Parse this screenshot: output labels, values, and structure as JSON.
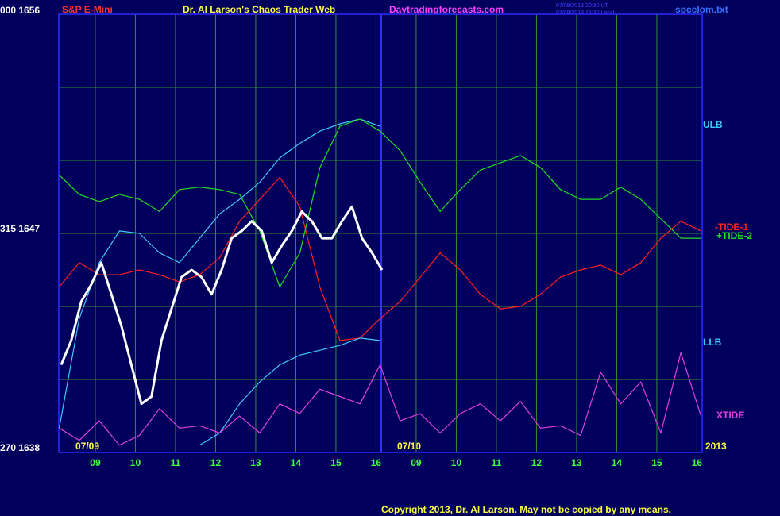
{
  "chart_data": {
    "type": "line",
    "instrument": "S&P E-Mini",
    "title": "Dr. Al Larson's Chaos Trader Web",
    "website": "Daytradingforecasts.com",
    "timestamps": [
      "07/09/2013 20:30 UT",
      "07/09/2013 15:30 Local"
    ],
    "file": "spcclom.txt",
    "copyright": "Copyright 2013, Dr. Al Larson. May not be copied by any means.",
    "day_labels": [
      "07/09",
      "07/10"
    ],
    "year": "2013",
    "xlim": [
      0.09,
      16.13
    ],
    "ylim": [
      1638,
      1656
    ],
    "yticks": [
      {
        "value": 1656,
        "label": "000 1656"
      },
      {
        "value": 1647,
        "label": "315 1647"
      },
      {
        "value": 1638,
        "label": "270 1638"
      }
    ],
    "ygrid": [
      1638,
      1641,
      1644,
      1647,
      1650,
      1653,
      1656
    ],
    "xticks": [
      {
        "value": 1,
        "label": "09"
      },
      {
        "value": 2,
        "label": "10"
      },
      {
        "value": 3,
        "label": "11"
      },
      {
        "value": 4,
        "label": "12"
      },
      {
        "value": 5,
        "label": "13"
      },
      {
        "value": 6,
        "label": "14"
      },
      {
        "value": 7,
        "label": "15"
      },
      {
        "value": 8,
        "label": "16"
      },
      {
        "value": 9,
        "label": "09"
      },
      {
        "value": 10,
        "label": "10"
      },
      {
        "value": 11,
        "label": "11"
      },
      {
        "value": 12,
        "label": "12"
      },
      {
        "value": 13,
        "label": "13"
      },
      {
        "value": 14,
        "label": "14"
      },
      {
        "value": 15,
        "label": "15"
      },
      {
        "value": 16,
        "label": "16"
      }
    ],
    "now_x": 8.13,
    "grid": true,
    "x": [
      0.1,
      0.6,
      1.1,
      1.6,
      2.1,
      2.6,
      3.1,
      3.6,
      4.1,
      4.6,
      5.1,
      5.6,
      6.1,
      6.6,
      7.1,
      7.6,
      8.1,
      8.6,
      9.1,
      9.6,
      10.1,
      10.6,
      11.1,
      11.6,
      12.1,
      12.6,
      13.1,
      13.6,
      14.1,
      14.6,
      15.1,
      15.6,
      16.1
    ],
    "series": [
      {
        "name": "ULB",
        "color": "#40c8ff",
        "values": [
          1639.0,
          1643.5,
          1645.8,
          1647.1,
          1647.0,
          1646.2,
          1645.8,
          1646.8,
          1647.8,
          1648.4,
          1649.1,
          1650.1,
          1650.7,
          1651.2,
          1651.5,
          1651.7,
          1651.4,
          null,
          null,
          null,
          null,
          null,
          null,
          null,
          null,
          null,
          null,
          null,
          null,
          null,
          null,
          null,
          null
        ]
      },
      {
        "name": "-TIDE-1",
        "color": "#ff2020",
        "values": [
          1644.8,
          1645.8,
          1645.3,
          1645.3,
          1645.5,
          1645.3,
          1645.0,
          1645.3,
          1646.0,
          1647.5,
          1648.4,
          1649.3,
          1648.1,
          1644.8,
          1642.6,
          1642.7,
          1643.5,
          1644.2,
          1645.2,
          1646.2,
          1645.5,
          1644.5,
          1643.9,
          1644.0,
          1644.5,
          1645.2,
          1645.5,
          1645.7,
          1645.3,
          1645.8,
          1646.8,
          1647.5,
          1647.1
        ]
      },
      {
        "name": "+TIDE-2",
        "color": "#20e020",
        "values": [
          1649.4,
          1648.6,
          1648.3,
          1648.6,
          1648.4,
          1647.9,
          1648.8,
          1648.9,
          1648.8,
          1648.6,
          1647.1,
          1644.8,
          1646.2,
          1649.7,
          1651.4,
          1651.7,
          1651.2,
          1650.4,
          1649.1,
          1647.9,
          1648.8,
          1649.6,
          1649.9,
          1650.2,
          1649.7,
          1648.8,
          1648.4,
          1648.4,
          1648.9,
          1648.4,
          1647.6,
          1646.8,
          1646.8
        ]
      },
      {
        "name": "LLB",
        "color": "#40c8ff",
        "values": [
          null,
          null,
          null,
          null,
          null,
          null,
          null,
          1638.3,
          1638.8,
          1640.0,
          1640.9,
          1641.6,
          1642.0,
          1642.2,
          1642.4,
          1642.7,
          1642.6,
          null,
          null,
          null,
          null,
          null,
          null,
          null,
          null,
          null,
          null,
          null,
          null,
          null,
          null,
          null,
          null
        ]
      },
      {
        "name": "XTIDE",
        "color": "#e040e0",
        "values": [
          1639.0,
          1638.5,
          1639.3,
          1638.3,
          1638.7,
          1639.8,
          1639.0,
          1639.1,
          1638.8,
          1639.5,
          1638.8,
          1640.0,
          1639.6,
          1640.6,
          1640.3,
          1640.0,
          1641.6,
          1639.3,
          1639.6,
          1638.8,
          1639.6,
          1640.0,
          1639.3,
          1640.1,
          1639.0,
          1639.1,
          1638.7,
          1641.3,
          1640.0,
          1640.9,
          1638.8,
          1642.1,
          1639.5
        ]
      }
    ],
    "price": {
      "color": "#ffffff",
      "x": [
        0.15,
        0.4,
        0.65,
        0.9,
        1.15,
        1.4,
        1.65,
        1.9,
        2.15,
        2.4,
        2.65,
        2.9,
        3.15,
        3.4,
        3.65,
        3.9,
        4.15,
        4.4,
        4.65,
        4.9,
        5.15,
        5.4,
        5.65,
        5.9,
        6.15,
        6.4,
        6.65,
        6.9,
        7.15,
        7.4,
        7.65,
        7.9,
        8.15
      ],
      "values": [
        1641.6,
        1642.6,
        1644.2,
        1644.9,
        1645.8,
        1644.5,
        1643.2,
        1641.6,
        1640.0,
        1640.3,
        1642.6,
        1643.9,
        1645.2,
        1645.5,
        1645.2,
        1644.5,
        1645.5,
        1646.8,
        1647.1,
        1647.5,
        1647.1,
        1645.8,
        1646.5,
        1647.1,
        1647.9,
        1647.5,
        1646.8,
        1646.8,
        1647.5,
        1648.1,
        1646.8,
        1646.2,
        1645.5
      ]
    }
  }
}
